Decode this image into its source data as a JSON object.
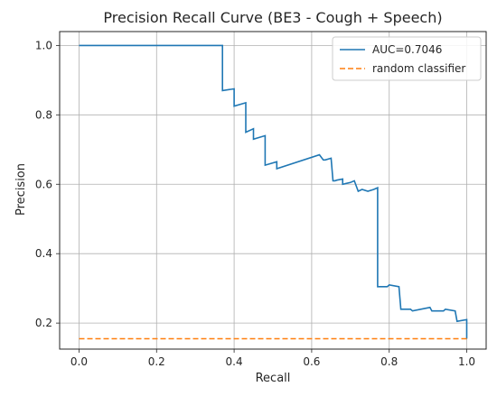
{
  "chart_data": {
    "type": "line",
    "title": "Precision Recall Curve (BE3 - Cough + Speech)",
    "xlabel": "Recall",
    "ylabel": "Precision",
    "xlim": [
      -0.05,
      1.05
    ],
    "ylim": [
      0.125,
      1.04
    ],
    "x_ticks": [
      0.0,
      0.2,
      0.4,
      0.6,
      0.8,
      1.0
    ],
    "x_tick_labels": [
      "0.0",
      "0.2",
      "0.4",
      "0.6",
      "0.8",
      "1.0"
    ],
    "y_ticks": [
      0.2,
      0.4,
      0.6,
      0.8,
      1.0
    ],
    "y_tick_labels": [
      "0.2",
      "0.4",
      "0.6",
      "0.8",
      "1.0"
    ],
    "grid": true,
    "legend_position": "upper-right",
    "series": [
      {
        "name": "AUC=0.7046",
        "color": "#1f77b4",
        "style": "solid",
        "x": [
          0.0,
          0.37,
          0.37,
          0.4,
          0.4,
          0.43,
          0.43,
          0.45,
          0.45,
          0.48,
          0.48,
          0.51,
          0.51,
          0.62,
          0.63,
          0.635,
          0.65,
          0.655,
          0.66,
          0.665,
          0.68,
          0.68,
          0.7,
          0.71,
          0.72,
          0.73,
          0.745,
          0.76,
          0.77,
          0.77,
          0.795,
          0.8,
          0.825,
          0.83,
          0.855,
          0.86,
          0.905,
          0.91,
          0.94,
          0.945,
          0.97,
          0.975,
          1.0,
          1.0
        ],
        "y": [
          1.0,
          1.0,
          0.87,
          0.875,
          0.825,
          0.835,
          0.75,
          0.76,
          0.73,
          0.74,
          0.655,
          0.665,
          0.645,
          0.685,
          0.67,
          0.67,
          0.675,
          0.61,
          0.61,
          0.612,
          0.615,
          0.6,
          0.605,
          0.61,
          0.58,
          0.585,
          0.58,
          0.585,
          0.59,
          0.305,
          0.305,
          0.31,
          0.305,
          0.24,
          0.24,
          0.235,
          0.245,
          0.235,
          0.235,
          0.24,
          0.235,
          0.205,
          0.21,
          0.155
        ]
      },
      {
        "name": "random classifier",
        "color": "#ff7f0e",
        "style": "dashed",
        "x": [
          0.0,
          1.0
        ],
        "y": [
          0.155,
          0.155
        ]
      }
    ]
  }
}
